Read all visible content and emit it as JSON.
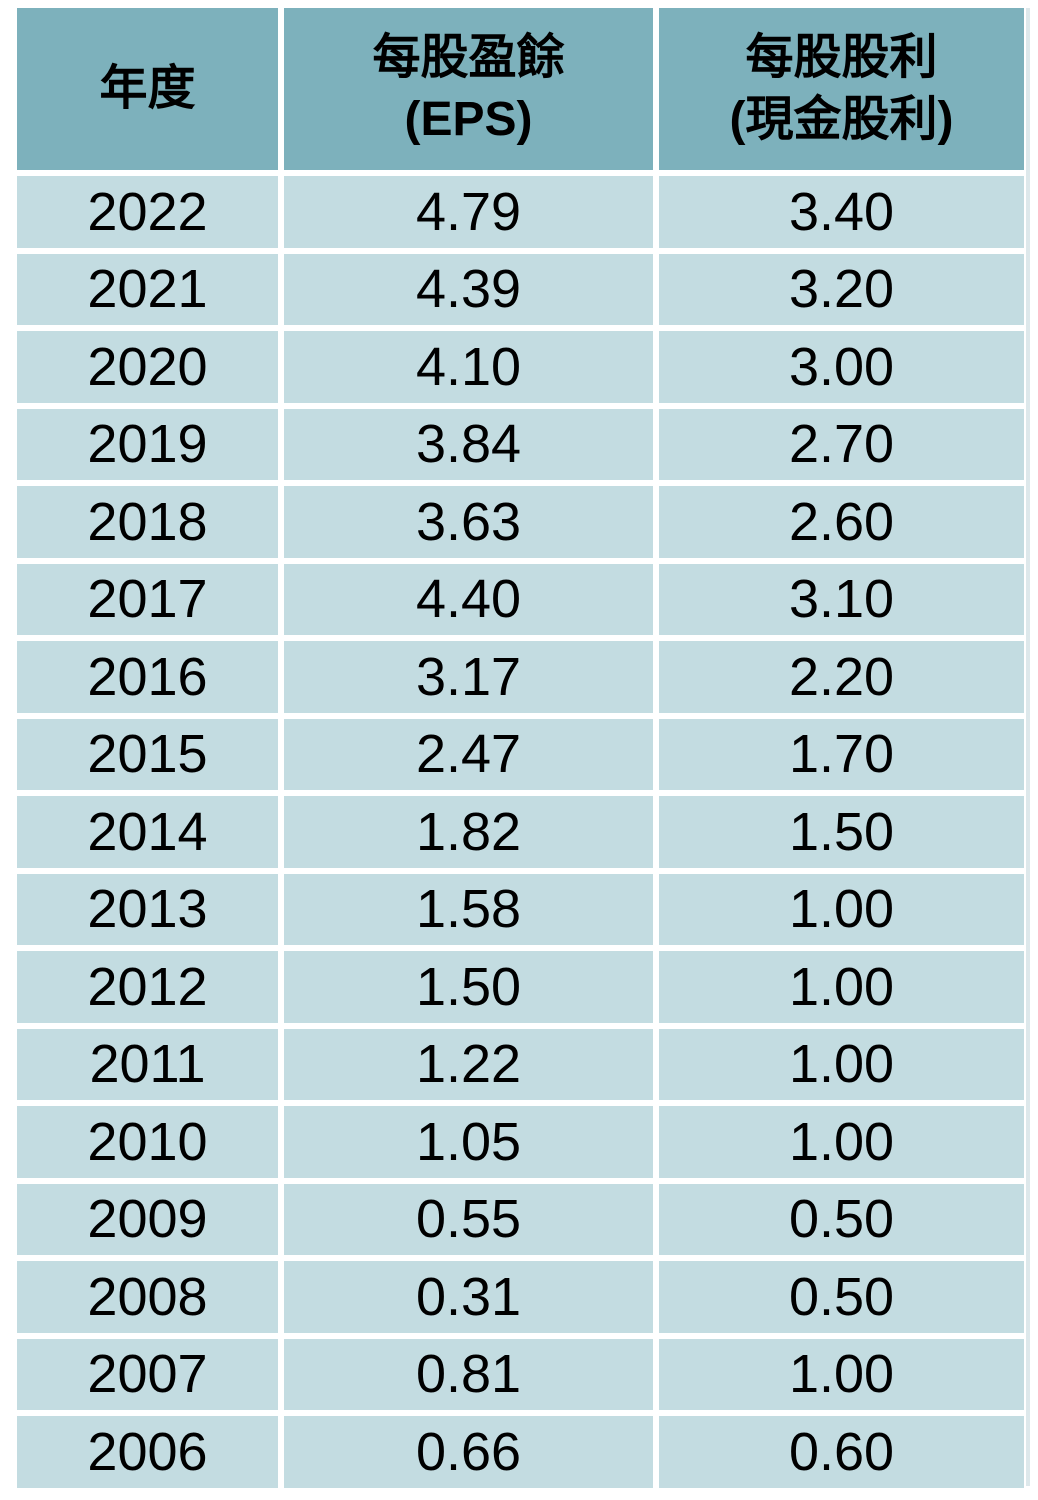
{
  "header": {
    "col1": {
      "title": "年度"
    },
    "col2": {
      "title": "每股盈餘",
      "subtitle": "(EPS)"
    },
    "col3": {
      "title": "每股股利",
      "subtitle": "(現金股利)"
    }
  },
  "colors": {
    "header_bg": "#7db1bc",
    "row_bg": "#c3dce1",
    "gutter": "#ffffff",
    "text": "#000000"
  },
  "chart_data": {
    "type": "table",
    "columns": [
      "年度",
      "每股盈餘 (EPS)",
      "每股股利 (現金股利)"
    ],
    "rows": [
      [
        "2022",
        "4.79",
        "3.40"
      ],
      [
        "2021",
        "4.39",
        "3.20"
      ],
      [
        "2020",
        "4.10",
        "3.00"
      ],
      [
        "2019",
        "3.84",
        "2.70"
      ],
      [
        "2018",
        "3.63",
        "2.60"
      ],
      [
        "2017",
        "4.40",
        "3.10"
      ],
      [
        "2016",
        "3.17",
        "2.20"
      ],
      [
        "2015",
        "2.47",
        "1.70"
      ],
      [
        "2014",
        "1.82",
        "1.50"
      ],
      [
        "2013",
        "1.58",
        "1.00"
      ],
      [
        "2012",
        "1.50",
        "1.00"
      ],
      [
        "2011",
        "1.22",
        "1.00"
      ],
      [
        "2010",
        "1.05",
        "1.00"
      ],
      [
        "2009",
        "0.55",
        "0.50"
      ],
      [
        "2008",
        "0.31",
        "0.50"
      ],
      [
        "2007",
        "0.81",
        "1.00"
      ],
      [
        "2006",
        "0.66",
        "0.60"
      ]
    ]
  }
}
